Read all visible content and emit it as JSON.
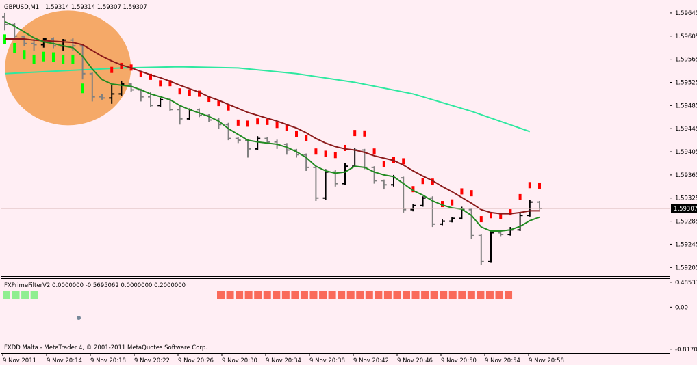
{
  "header": {
    "symbol": "GBPUSD,M1",
    "ohlc": "1.59314 1.59314 1.59307 1.59307"
  },
  "indicator": {
    "label": "FXPrimeFilterV2 0.0000000 -0.5695062 0.0000000 0.2000000"
  },
  "footer": {
    "copyright": "FXDD Malta - MetaTrader 4, © 2001-2011 MetaQuotes Software Corp."
  },
  "colors": {
    "background": "#FFEEF4",
    "bar_up": "#000000",
    "bar_down": "#808080",
    "ma_fast": "#228B22",
    "ma_mid": "#8B1A1A",
    "ma_slow": "#2EE8A0",
    "arrows_down": "#FF0000",
    "arrows_up": "#00FF00",
    "highlight_circle": "#F4A460",
    "filter_sell": "#FA6A5A",
    "filter_buy": "#90EE90",
    "dot": "#778899",
    "current_price_line": "#D8B8B8"
  },
  "chart_data": [
    {
      "type": "candlestick",
      "title": "",
      "price_axis": {
        "ticks": [
          "1.59645",
          "1.59605",
          "1.59565",
          "1.59525",
          "1.59485",
          "1.59445",
          "1.59405",
          "1.59365",
          "1.59325",
          "1.59285",
          "1.59245",
          "1.59205"
        ],
        "ylim": [
          1.5919,
          1.59665
        ],
        "current_price": "1.59307"
      },
      "time_axis": {
        "ticks": [
          "9 Nov 2011",
          "9 Nov 20:14",
          "9 Nov 20:18",
          "9 Nov 20:22",
          "9 Nov 20:26",
          "9 Nov 20:30",
          "9 Nov 20:34",
          "9 Nov 20:38",
          "9 Nov 20:42",
          "9 Nov 20:46",
          "9 Nov 20:50",
          "9 Nov 20:54",
          "9 Nov 20:58"
        ],
        "start": "20:10",
        "minutes_per_bar": 1
      },
      "bars": [
        [
          1.59638,
          1.59645,
          1.59615,
          1.59625
        ],
        [
          1.59625,
          1.59628,
          1.596,
          1.59605
        ],
        [
          1.59604,
          1.59606,
          1.59588,
          1.59592
        ],
        [
          1.59592,
          1.596,
          1.5958,
          1.5959
        ],
        [
          1.5959,
          1.59602,
          1.59585,
          1.596
        ],
        [
          1.596,
          1.59603,
          1.59584,
          1.59588
        ],
        [
          1.59588,
          1.596,
          1.5958,
          1.59598
        ],
        [
          1.59598,
          1.59601,
          1.5958,
          1.59588
        ],
        [
          1.59588,
          1.5959,
          1.5953,
          1.5954
        ],
        [
          1.5954,
          1.59542,
          1.59492,
          1.595
        ],
        [
          1.595,
          1.59505,
          1.59495,
          1.59498
        ],
        [
          1.59498,
          1.5952,
          1.59488,
          1.59505
        ],
        [
          1.59505,
          1.59528,
          1.59502,
          1.59522
        ],
        [
          1.59522,
          1.59524,
          1.59508,
          1.59512
        ],
        [
          1.59512,
          1.59514,
          1.59492,
          1.595
        ],
        [
          1.595,
          1.59508,
          1.59482,
          1.59485
        ],
        [
          1.59485,
          1.59498,
          1.59483,
          1.59495
        ],
        [
          1.59495,
          1.59497,
          1.59476,
          1.59478
        ],
        [
          1.59478,
          1.59484,
          1.59452,
          1.59462
        ],
        [
          1.59462,
          1.5948,
          1.5946,
          1.59478
        ],
        [
          1.59478,
          1.5948,
          1.59465,
          1.59468
        ],
        [
          1.59468,
          1.5947,
          1.59456,
          1.5946
        ],
        [
          1.5946,
          1.59464,
          1.59445,
          1.59452
        ],
        [
          1.59452,
          1.59455,
          1.59425,
          1.59428
        ],
        [
          1.59428,
          1.5943,
          1.5942,
          1.59425
        ],
        [
          1.59425,
          1.59427,
          1.59395,
          1.5941
        ],
        [
          1.5941,
          1.59432,
          1.59408,
          1.59428
        ],
        [
          1.59428,
          1.5943,
          1.59418,
          1.59422
        ],
        [
          1.59422,
          1.59426,
          1.5941,
          1.59418
        ],
        [
          1.59418,
          1.5942,
          1.594,
          1.59408
        ],
        [
          1.59408,
          1.5941,
          1.59395,
          1.594
        ],
        [
          1.594,
          1.59402,
          1.59372,
          1.59378
        ],
        [
          1.59378,
          1.5938,
          1.5932,
          1.59325
        ],
        [
          1.59325,
          1.59375,
          1.59322,
          1.5937
        ],
        [
          1.5937,
          1.59374,
          1.59345,
          1.5935
        ],
        [
          1.5935,
          1.59385,
          1.59348,
          1.5938
        ],
        [
          1.5938,
          1.59412,
          1.59378,
          1.59408
        ],
        [
          1.59408,
          1.5941,
          1.59375,
          1.59378
        ],
        [
          1.59378,
          1.5938,
          1.5935,
          1.59355
        ],
        [
          1.59355,
          1.59357,
          1.5934,
          1.59348
        ],
        [
          1.59348,
          1.59365,
          1.59345,
          1.5936
        ],
        [
          1.5936,
          1.59362,
          1.593,
          1.59305
        ],
        [
          1.59305,
          1.59315,
          1.59302,
          1.59312
        ],
        [
          1.59312,
          1.59328,
          1.5931,
          1.59325
        ],
        [
          1.59325,
          1.59328,
          1.59275,
          1.5928
        ],
        [
          1.5928,
          1.59288,
          1.59278,
          1.59285
        ],
        [
          1.59285,
          1.59292,
          1.59283,
          1.5929
        ],
        [
          1.5929,
          1.5931,
          1.59288,
          1.59305
        ],
        [
          1.59305,
          1.59308,
          1.59255,
          1.5926
        ],
        [
          1.5926,
          1.59262,
          1.5921,
          1.59215
        ],
        [
          1.59215,
          1.5927,
          1.59213,
          1.59265
        ],
        [
          1.59265,
          1.59268,
          1.59258,
          1.59262
        ],
        [
          1.59262,
          1.59275,
          1.5926,
          1.5927
        ],
        [
          1.5927,
          1.593,
          1.59268,
          1.59295
        ],
        [
          1.59295,
          1.59322,
          1.59293,
          1.59318
        ],
        [
          1.59318,
          1.5932,
          1.59305,
          1.59307
        ]
      ],
      "ma_fast": [
        1.5963,
        1.59622,
        1.59612,
        1.59602,
        1.59595,
        1.59592,
        1.59588,
        1.59585,
        1.5957,
        1.59548,
        1.5953,
        1.59522,
        1.5952,
        1.59518,
        1.59512,
        1.59505,
        1.595,
        1.59495,
        1.59485,
        1.59478,
        1.59472,
        1.59466,
        1.59458,
        1.59445,
        1.59435,
        1.59425,
        1.59422,
        1.5942,
        1.59418,
        1.59413,
        1.59405,
        1.59395,
        1.5938,
        1.59372,
        1.59368,
        1.5937,
        1.5938,
        1.59378,
        1.5937,
        1.59365,
        1.59362,
        1.5935,
        1.59338,
        1.5933,
        1.5932,
        1.59313,
        1.59308,
        1.59306,
        1.59295,
        1.59275,
        1.59268,
        1.59268,
        1.5927,
        1.59276,
        1.59286,
        1.59292
      ],
      "ma_mid": [
        1.596,
        1.596,
        1.596,
        1.59598,
        1.59597,
        1.59596,
        1.59595,
        1.59594,
        1.5959,
        1.5958,
        1.5957,
        1.59562,
        1.59555,
        1.5955,
        1.59544,
        1.59538,
        1.59533,
        1.59527,
        1.5952,
        1.59514,
        1.59508,
        1.595,
        1.59494,
        1.59487,
        1.5948,
        1.59473,
        1.59468,
        1.59463,
        1.59458,
        1.59452,
        1.59446,
        1.59438,
        1.59428,
        1.5942,
        1.59414,
        1.5941,
        1.59408,
        1.59404,
        1.59398,
        1.59394,
        1.5939,
        1.59382,
        1.59372,
        1.59363,
        1.59355,
        1.59345,
        1.59336,
        1.59326,
        1.59316,
        1.59305,
        1.593,
        1.59298,
        1.59298,
        1.593,
        1.59303,
        1.59303
      ],
      "ma_slow": {
        "points": [
          [
            0,
            1.5954
          ],
          [
            6,
            1.59545
          ],
          [
            12,
            1.5955
          ],
          [
            18,
            1.59552
          ],
          [
            24,
            1.5955
          ],
          [
            30,
            1.5954
          ],
          [
            36,
            1.59525
          ],
          [
            42,
            1.59505
          ],
          [
            48,
            1.59475
          ],
          [
            54,
            1.5944
          ]
        ]
      },
      "arrows_down_bars": [
        11,
        12,
        13,
        14,
        15,
        16,
        17,
        18,
        19,
        20,
        21,
        22,
        23,
        24,
        25,
        26,
        27,
        28,
        29,
        30,
        31,
        32,
        33,
        34,
        35,
        36,
        37,
        38,
        39,
        40,
        41,
        42,
        43,
        44,
        45,
        46,
        47,
        48,
        49,
        50,
        51,
        52,
        53,
        54,
        55
      ],
      "arrows_up_bars": [
        0,
        1,
        2,
        3,
        4,
        5,
        6,
        7,
        8
      ]
    },
    {
      "type": "indicator",
      "name": "FXPrimeFilterV2",
      "axis_ticks": [
        "0.485338",
        "0.00",
        "-0.817024"
      ],
      "ylim": [
        -0.9,
        0.55
      ],
      "buy_bars": [
        0,
        1,
        2,
        3
      ],
      "sell_bars": [
        20,
        21,
        22,
        23,
        24,
        25,
        26,
        27,
        28,
        29,
        30,
        31,
        32,
        33,
        34,
        35,
        36,
        37,
        38,
        39,
        40,
        41,
        42,
        43,
        44,
        45,
        46,
        47,
        48,
        49,
        50,
        51
      ],
      "dot": {
        "bar": 7,
        "value": -0.12
      }
    }
  ]
}
